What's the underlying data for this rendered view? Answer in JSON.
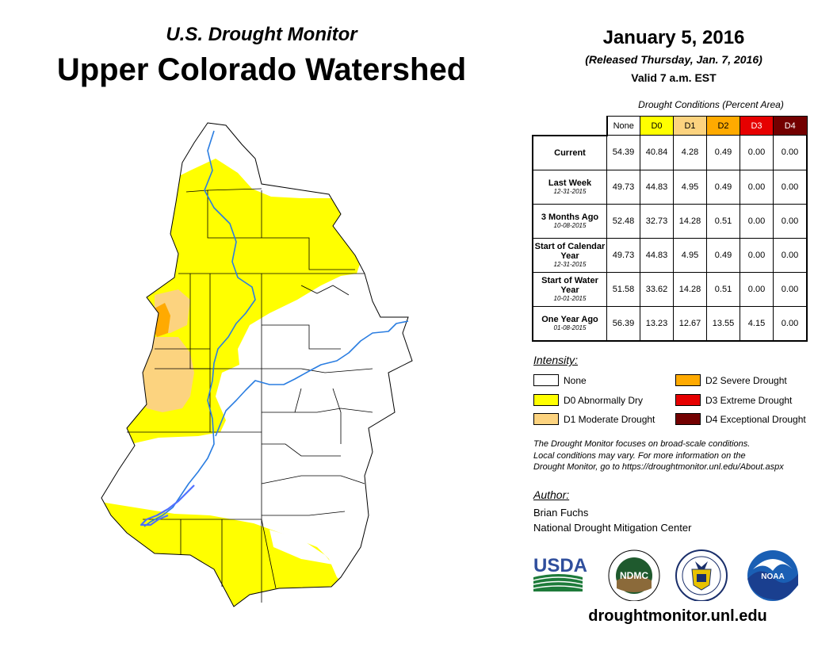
{
  "header": {
    "supertitle": "U.S. Drought Monitor",
    "title": "Upper Colorado Watershed",
    "date": "January 5, 2016",
    "released": "(Released Thursday, Jan. 7, 2016)",
    "valid": "Valid 7 a.m. EST"
  },
  "table": {
    "caption": "Drought Conditions (Percent Area)",
    "columns": [
      {
        "label": "None",
        "color": "#ffffff"
      },
      {
        "label": "D0",
        "color": "#ffff00"
      },
      {
        "label": "D1",
        "color": "#fcd37f"
      },
      {
        "label": "D2",
        "color": "#ffaa00"
      },
      {
        "label": "D3",
        "color": "#e60000"
      },
      {
        "label": "D4",
        "color": "#730000"
      }
    ],
    "rows": [
      {
        "label": "Current",
        "sub": "",
        "values": [
          "54.39",
          "40.84",
          "4.28",
          "0.49",
          "0.00",
          "0.00"
        ]
      },
      {
        "label": "Last Week",
        "sub": "12-31-2015",
        "values": [
          "49.73",
          "44.83",
          "4.95",
          "0.49",
          "0.00",
          "0.00"
        ]
      },
      {
        "label": "3 Months Ago",
        "sub": "10-08-2015",
        "values": [
          "52.48",
          "32.73",
          "14.28",
          "0.51",
          "0.00",
          "0.00"
        ]
      },
      {
        "label": "Start of Calendar Year",
        "sub": "12-31-2015",
        "values": [
          "49.73",
          "44.83",
          "4.95",
          "0.49",
          "0.00",
          "0.00"
        ]
      },
      {
        "label": "Start of Water Year",
        "sub": "10-01-2015",
        "values": [
          "51.58",
          "33.62",
          "14.28",
          "0.51",
          "0.00",
          "0.00"
        ]
      },
      {
        "label": "One Year Ago",
        "sub": "01-08-2015",
        "values": [
          "56.39",
          "13.23",
          "12.67",
          "13.55",
          "4.15",
          "0.00"
        ]
      }
    ]
  },
  "legend": {
    "heading": "Intensity:",
    "items": [
      {
        "label": "None",
        "color": "#ffffff"
      },
      {
        "label": "D0 Abnormally Dry",
        "color": "#ffff00"
      },
      {
        "label": "D1 Moderate Drought",
        "color": "#fcd37f"
      },
      {
        "label": "D2 Severe Drought",
        "color": "#ffaa00"
      },
      {
        "label": "D3 Extreme Drought",
        "color": "#e60000"
      },
      {
        "label": "D4 Exceptional Drought",
        "color": "#730000"
      }
    ]
  },
  "note": [
    "The Drought Monitor focuses on broad-scale conditions.",
    "Local conditions may vary. For more information on the",
    "Drought Monitor, go to https://droughtmonitor.unl.edu/About.aspx"
  ],
  "author": {
    "heading": "Author:",
    "name": "Brian Fuchs",
    "org": "National Drought Mitigation Center"
  },
  "logos": {
    "usda": "USDA",
    "ndmc": "NDMC",
    "noaa": "NOAA"
  },
  "footer_url": "droughtmonitor.unl.edu",
  "map_colors": {
    "none": "#ffffff",
    "d0": "#ffff00",
    "d1": "#fcd37f",
    "d2": "#ffaa00",
    "river": "#2a7de1",
    "boundary": "#000000"
  }
}
